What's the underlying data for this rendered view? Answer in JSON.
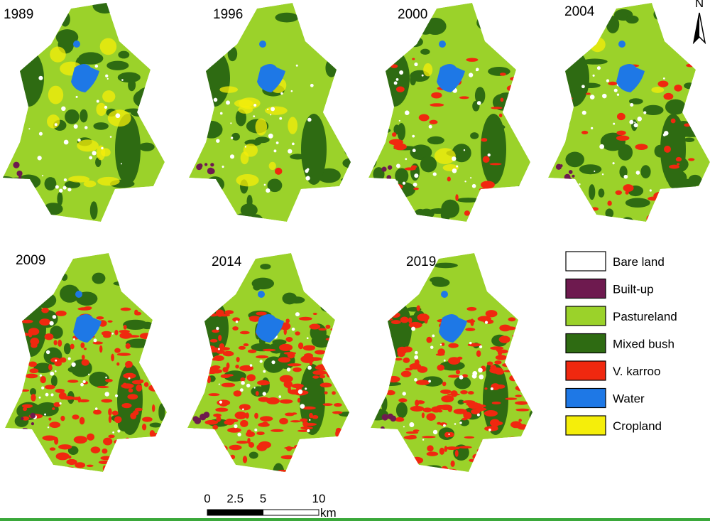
{
  "maps": [
    {
      "year": "1989"
    },
    {
      "year": "1996"
    },
    {
      "year": "2000"
    },
    {
      "year": "2004"
    },
    {
      "year": "2009"
    },
    {
      "year": "2014"
    },
    {
      "year": "2019"
    }
  ],
  "legend": [
    {
      "label": "Bare land",
      "color": "#ffffff"
    },
    {
      "label": "Built-up",
      "color": "#6e1a4f"
    },
    {
      "label": "Pastureland",
      "color": "#9bd22a"
    },
    {
      "label": "Mixed bush",
      "color": "#2e6b12"
    },
    {
      "label": "V. karroo",
      "color": "#f0280f"
    },
    {
      "label": "Water",
      "color": "#1e78e6"
    },
    {
      "label": "Cropland",
      "color": "#f5ee0a"
    }
  ],
  "scale_bar": {
    "ticks": [
      0,
      2.5,
      5,
      10
    ],
    "unit": "km"
  },
  "north_arrow": "N"
}
